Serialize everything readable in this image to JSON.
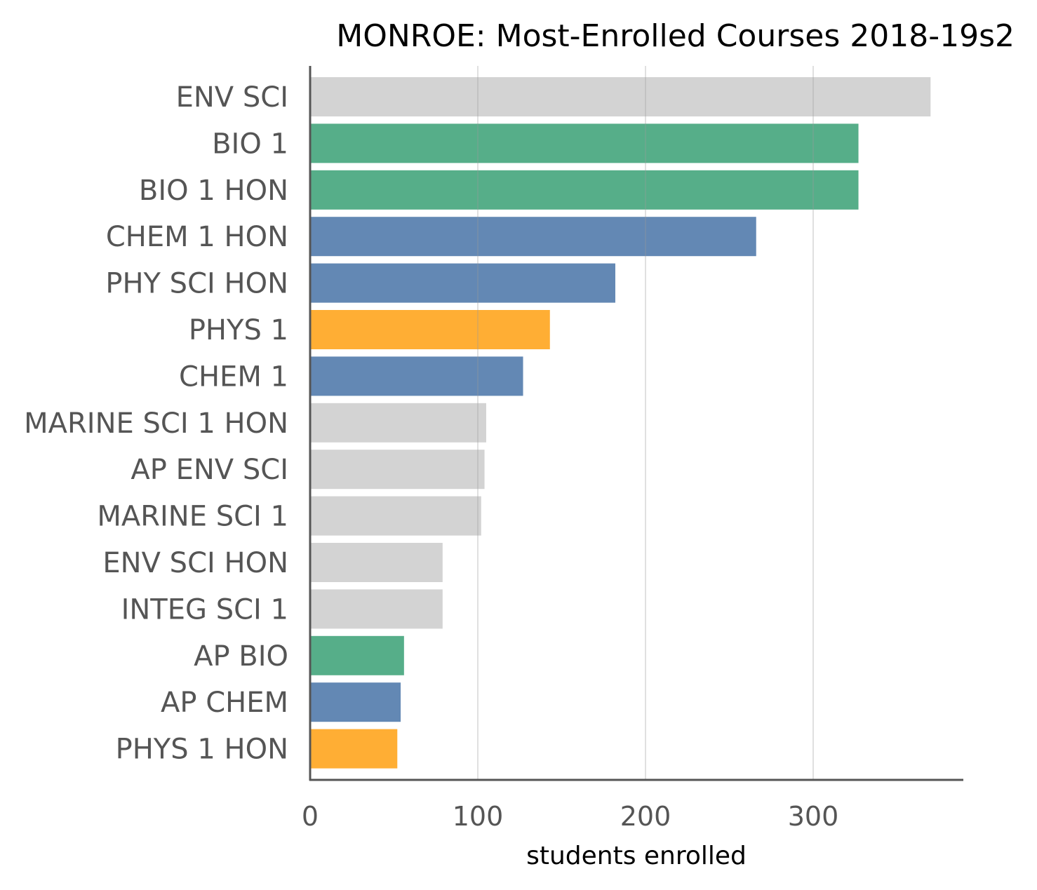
{
  "chart_data": {
    "type": "bar",
    "orientation": "horizontal",
    "title": "MONROE: Most-Enrolled Courses 2018-19s2",
    "xlabel": "students enrolled",
    "ylabel": "",
    "xlim": [
      0,
      390
    ],
    "xticks": [
      0,
      100,
      200,
      300
    ],
    "grid": "vertical",
    "categories": [
      "ENV SCI",
      "BIO 1",
      "BIO 1 HON",
      "CHEM 1 HON",
      "PHY SCI HON",
      "PHYS 1",
      "CHEM 1",
      "MARINE SCI 1 HON",
      "AP ENV SCI",
      "MARINE SCI 1",
      "ENV SCI HON",
      "INTEG SCI 1",
      "AP BIO",
      "AP CHEM",
      "PHYS 1 HON"
    ],
    "values": [
      370,
      327,
      327,
      266,
      182,
      143,
      127,
      105,
      104,
      102,
      79,
      79,
      56,
      54,
      52
    ],
    "colors": [
      "#d3d3d3",
      "#56ae89",
      "#56ae89",
      "#6388b4",
      "#6388b4",
      "#ffae34",
      "#6388b4",
      "#d3d3d3",
      "#d3d3d3",
      "#d3d3d3",
      "#d3d3d3",
      "#d3d3d3",
      "#56ae89",
      "#6388b4",
      "#ffae34"
    ]
  }
}
